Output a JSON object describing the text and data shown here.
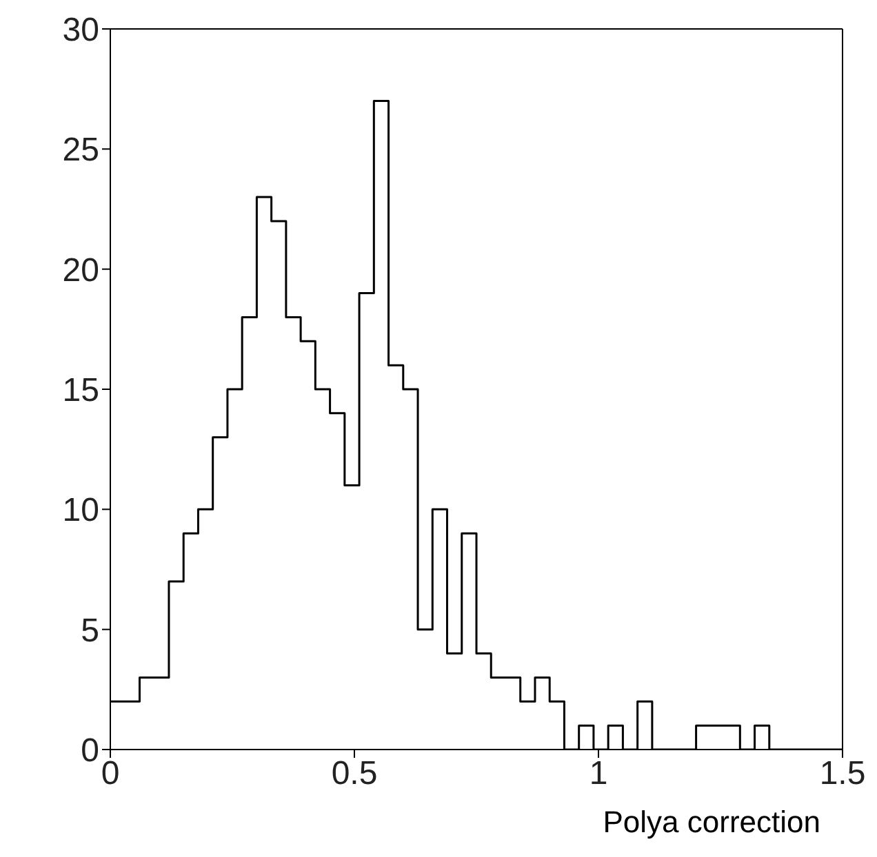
{
  "chart_data": {
    "type": "histogram",
    "xlabel": "Polya correction",
    "bins": [
      0,
      0.03,
      0.06,
      0.09,
      0.12,
      0.15,
      0.18,
      0.21,
      0.24,
      0.27,
      0.3,
      0.33,
      0.36,
      0.39,
      0.42,
      0.45,
      0.48,
      0.51,
      0.54,
      0.57,
      0.6,
      0.63,
      0.66,
      0.69,
      0.72,
      0.75,
      0.78,
      0.81,
      0.84,
      0.87,
      0.9,
      0.93,
      0.96,
      0.99,
      1.02,
      1.05,
      1.08,
      1.11,
      1.14,
      1.17,
      1.2,
      1.23,
      1.26,
      1.29,
      1.32,
      1.35,
      1.38,
      1.41,
      1.44,
      1.47,
      1.5
    ],
    "values": [
      2,
      2,
      3,
      3,
      7,
      9,
      10,
      13,
      15,
      18,
      23,
      22,
      18,
      17,
      15,
      14,
      11,
      19,
      27,
      16,
      15,
      5,
      10,
      4,
      9,
      4,
      3,
      3,
      2,
      3,
      2,
      0,
      1,
      0,
      1,
      0,
      2,
      0,
      0,
      0,
      1,
      1,
      1,
      0,
      1,
      0,
      0,
      0,
      0,
      0
    ],
    "color": "#000000",
    "xlim": [
      0,
      1.5
    ],
    "xticks": [
      0,
      0.5,
      1,
      1.5
    ],
    "ylim": [
      0,
      30
    ],
    "yticks": [
      0,
      5,
      10,
      15,
      20,
      25,
      30
    ],
    "grid": false
  }
}
